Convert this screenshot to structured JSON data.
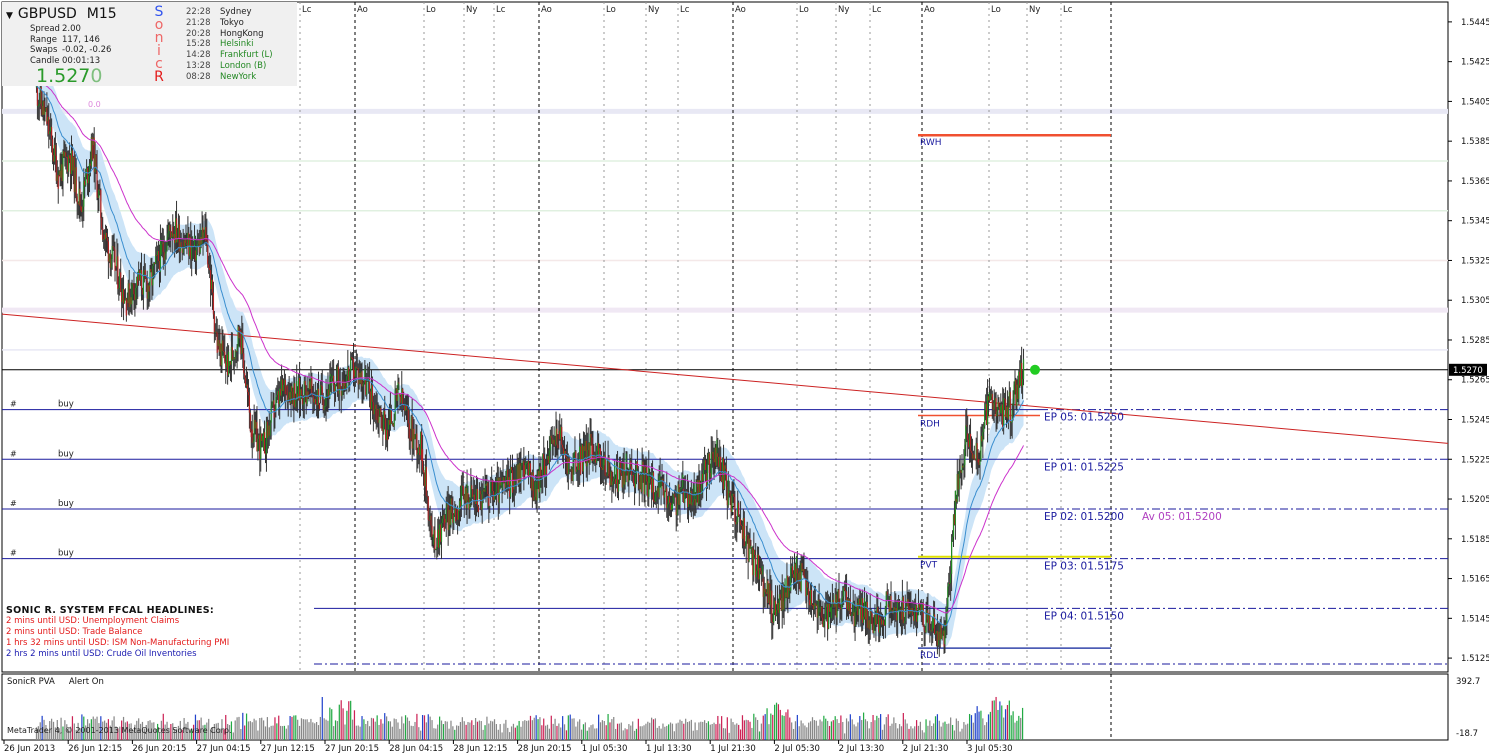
{
  "info": {
    "symbol": "GBPUSD",
    "timeframe": "M15",
    "stats": [
      {
        "k": "Spread",
        "v": "2.00"
      },
      {
        "k": "Range",
        "v": "117, 146"
      },
      {
        "k": "Swaps",
        "v": "-0.02, -0.26"
      },
      {
        "k": "Candle",
        "v": "00:01:13"
      }
    ],
    "price_main": "1.527",
    "price_last": "0",
    "sonic_letters": [
      {
        "ch": "S",
        "color": "#3355ee"
      },
      {
        "ch": "o",
        "color": "#ee6666"
      },
      {
        "ch": "n",
        "color": "#ee6666"
      },
      {
        "ch": "i",
        "color": "#ee6666"
      },
      {
        "ch": "c",
        "color": "#ee6666"
      },
      {
        "ch": "R",
        "color": "#e31b1b"
      }
    ],
    "sessions": [
      {
        "time": "22:28",
        "name": "Sydney",
        "open": false
      },
      {
        "time": "21:28",
        "name": "Tokyo",
        "open": false
      },
      {
        "time": "20:28",
        "name": "HongKong",
        "open": false
      },
      {
        "time": "15:28",
        "name": "Helsinki",
        "open": true
      },
      {
        "time": "14:28",
        "name": "Frankfurt  (L)",
        "open": true
      },
      {
        "time": "13:28",
        "name": "London  (B)",
        "open": true
      },
      {
        "time": "08:28",
        "name": "NewYork",
        "open": true
      }
    ]
  },
  "headlines": {
    "title": "SONIC R. SYSTEM  FFCAL HEADLINES:",
    "items": [
      {
        "text": "2 mins until USD: Unemployment Claims",
        "color": "red"
      },
      {
        "text": "2 mins until USD: Trade Balance",
        "color": "red"
      },
      {
        "text": "1 hrs 32 mins until USD: ISM Non-Manufacturing PMI",
        "color": "red"
      },
      {
        "text": "2 hrs 2 mins until USD: Crude Oil Inventories",
        "color": "blue"
      }
    ]
  },
  "pva": {
    "label": "SonicR PVA",
    "alert": "Alert On"
  },
  "copyright": "MetaTrader 4, © 2001-2013 MetaQuotes Software Corp.",
  "chart_data": {
    "type": "candlestick",
    "ylim": [
      1.5118,
      1.5455
    ],
    "y_ticks": [
      "1.5445",
      "1.5425",
      "1.5405",
      "1.5385",
      "1.5365",
      "1.5345",
      "1.5325",
      "1.5305",
      "1.5285",
      "1.5265",
      "1.5245",
      "1.5225",
      "1.5205",
      "1.5185",
      "1.5165",
      "1.5145",
      "1.5125"
    ],
    "x_ticks": [
      "26 Jun 2013",
      "26 Jun 12:15",
      "26 Jun 20:15",
      "27 Jun 04:15",
      "27 Jun 12:15",
      "27 Jun 20:15",
      "28 Jun 04:15",
      "28 Jun 12:15",
      "28 Jun 20:15",
      "1 Jul 05:30",
      "1 Jul 13:30",
      "1 Jul 21:30",
      "2 Jul 05:30",
      "2 Jul 13:30",
      "2 Jul 21:30",
      "3 Jul 05:30"
    ],
    "current_price": "1.5270",
    "price_path": [
      [
        1.5412,
        1.5395
      ],
      [
        1.5395,
        1.5368
      ],
      [
        1.5368,
        1.5378
      ],
      [
        1.5378,
        1.5352
      ],
      [
        1.5352,
        1.5383
      ],
      [
        1.5383,
        1.5338
      ],
      [
        1.5338,
        1.5322
      ],
      [
        1.5322,
        1.5305
      ],
      [
        1.5305,
        1.5315
      ],
      [
        1.5315,
        1.5312
      ],
      [
        1.5312,
        1.5328
      ],
      [
        1.5328,
        1.5342
      ],
      [
        1.5342,
        1.5335
      ],
      [
        1.5335,
        1.533
      ],
      [
        1.533,
        1.5338
      ],
      [
        1.5338,
        1.5282
      ],
      [
        1.5282,
        1.5272
      ],
      [
        1.5272,
        1.529
      ],
      [
        1.529,
        1.524
      ],
      [
        1.524,
        1.523
      ],
      [
        1.523,
        1.525
      ],
      [
        1.525,
        1.5262
      ],
      [
        1.5262,
        1.5258
      ],
      [
        1.5258,
        1.526
      ],
      [
        1.526,
        1.5255
      ],
      [
        1.5255,
        1.5262
      ],
      [
        1.5262,
        1.5265
      ],
      [
        1.5265,
        1.527
      ],
      [
        1.527,
        1.5265
      ],
      [
        1.5265,
        1.525
      ],
      [
        1.525,
        1.524
      ],
      [
        1.524,
        1.5258
      ],
      [
        1.5258,
        1.524
      ],
      [
        1.524,
        1.523
      ],
      [
        1.523,
        1.5182
      ],
      [
        1.5182,
        1.5195
      ],
      [
        1.5195,
        1.52
      ],
      [
        1.52,
        1.5208
      ],
      [
        1.5208,
        1.5205
      ],
      [
        1.5205,
        1.5208
      ],
      [
        1.5208,
        1.521
      ],
      [
        1.521,
        1.5215
      ],
      [
        1.5215,
        1.5222
      ],
      [
        1.5222,
        1.521
      ],
      [
        1.521,
        1.5225
      ],
      [
        1.5225,
        1.5238
      ],
      [
        1.5238,
        1.522
      ],
      [
        1.522,
        1.5225
      ],
      [
        1.5225,
        1.5232
      ],
      [
        1.5232,
        1.5222
      ],
      [
        1.5222,
        1.5215
      ],
      [
        1.5215,
        1.522
      ],
      [
        1.522,
        1.5218
      ],
      [
        1.5218,
        1.5213
      ],
      [
        1.5213,
        1.521
      ],
      [
        1.521,
        1.52
      ],
      [
        1.52,
        1.521
      ],
      [
        1.521,
        1.5205
      ],
      [
        1.5205,
        1.5218
      ],
      [
        1.5218,
        1.5228
      ],
      [
        1.5228,
        1.5208
      ],
      [
        1.5208,
        1.5195
      ],
      [
        1.5195,
        1.5175
      ],
      [
        1.5175,
        1.5165
      ],
      [
        1.5165,
        1.5148
      ],
      [
        1.5148,
        1.5158
      ],
      [
        1.5158,
        1.517
      ],
      [
        1.517,
        1.516
      ],
      [
        1.516,
        1.5148
      ],
      [
        1.5148,
        1.5145
      ],
      [
        1.5145,
        1.5155
      ],
      [
        1.5155,
        1.5148
      ],
      [
        1.5148,
        1.515
      ],
      [
        1.515,
        1.5142
      ],
      [
        1.5142,
        1.5152
      ],
      [
        1.5152,
        1.5148
      ],
      [
        1.5148,
        1.515
      ],
      [
        1.515,
        1.5148
      ],
      [
        1.5148,
        1.514
      ],
      [
        1.514,
        1.5132
      ],
      [
        1.5132,
        1.5205
      ],
      [
        1.5205,
        1.5238
      ],
      [
        1.5238,
        1.5225
      ],
      [
        1.5225,
        1.5255
      ],
      [
        1.5255,
        1.5248
      ],
      [
        1.5248,
        1.5252
      ],
      [
        1.5252,
        1.5272
      ]
    ],
    "lines": {
      "rwh": {
        "label": "RWH",
        "price": 1.5388
      },
      "rdh": {
        "label": "RDH",
        "price": 1.5247
      },
      "pvt": {
        "label": "PVT",
        "price": 1.5176
      },
      "rdl": {
        "label": "RDL",
        "price": 1.513
      },
      "entries": [
        {
          "label": "EP 05:  01.5250",
          "price": 1.525,
          "buy": "buy"
        },
        {
          "label": "EP 01:  01.5225",
          "price": 1.5225,
          "buy": "buy"
        },
        {
          "label": "EP 02:  01.5200",
          "price": 1.52,
          "buy": "buy",
          "extra": "Av 05:  01.5200"
        },
        {
          "label": "EP 03:  01.5175",
          "price": 1.5175,
          "buy": "buy"
        },
        {
          "label": "EP 04:  01.5150",
          "price": 1.515,
          "buy": ""
        }
      ],
      "ma_zero_label": "0.0"
    },
    "session_markers": [
      "Lc",
      "Ao",
      "Lo",
      "Ny",
      "Lc",
      "Ao",
      "Lo",
      "Ny",
      "Lc",
      "Ao",
      "Lo",
      "Ny",
      "Lc",
      "Ao",
      "Lo",
      "Ny",
      "Lc"
    ],
    "volume": {
      "ymax_label": "392.7",
      "ymin_label": "-18.7",
      "max": 392.7
    }
  },
  "colors": {
    "bull": "#228b22",
    "bear": "#b22222",
    "wick": "#333333",
    "ema_band": "#cce4f7",
    "ema": "#3a8ecf",
    "ma_slow": "#cc33cc",
    "trend": "#cc2222",
    "entry_line": "#1a1a9e",
    "rwh": "#f05030",
    "pvt": "#e0e000",
    "current": "#000000",
    "vol_blue": "#2244cc",
    "vol_red": "#cc2255",
    "vol_green": "#22aa44",
    "vol_gray": "#888888"
  }
}
